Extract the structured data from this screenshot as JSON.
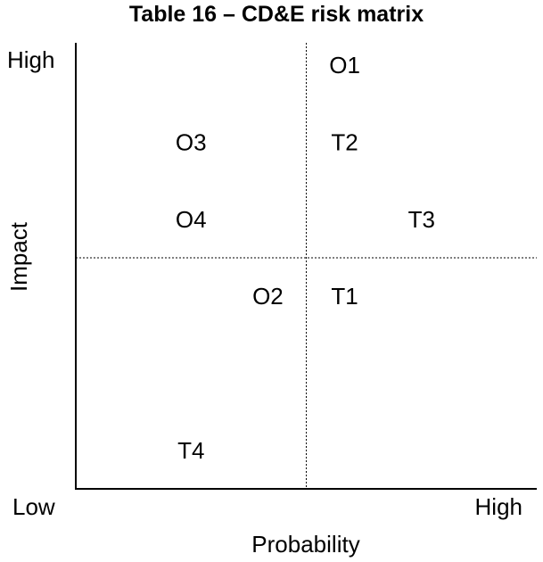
{
  "chart_data": {
    "type": "scatter",
    "title": "Table 16 – CD&E risk matrix",
    "xlabel": "Probability",
    "ylabel": "Impact",
    "x_tick_labels": {
      "low": "Low",
      "high": "High"
    },
    "y_tick_labels": {
      "high": "High"
    },
    "xlim": [
      0,
      6
    ],
    "ylim": [
      0,
      6
    ],
    "quadrant_dividers": {
      "x": 3,
      "y": 3,
      "style": "dotted"
    },
    "grid": false,
    "legend": "none",
    "points": [
      {
        "label": "O1",
        "x": 3.5,
        "y": 5.5
      },
      {
        "label": "O3",
        "x": 1.5,
        "y": 4.5
      },
      {
        "label": "T2",
        "x": 3.5,
        "y": 4.5
      },
      {
        "label": "O4",
        "x": 1.5,
        "y": 3.5
      },
      {
        "label": "T3",
        "x": 4.5,
        "y": 3.5
      },
      {
        "label": "O2",
        "x": 2.5,
        "y": 2.5
      },
      {
        "label": "T1",
        "x": 3.5,
        "y": 2.5
      },
      {
        "label": "T4",
        "x": 1.5,
        "y": 0.5
      }
    ]
  }
}
